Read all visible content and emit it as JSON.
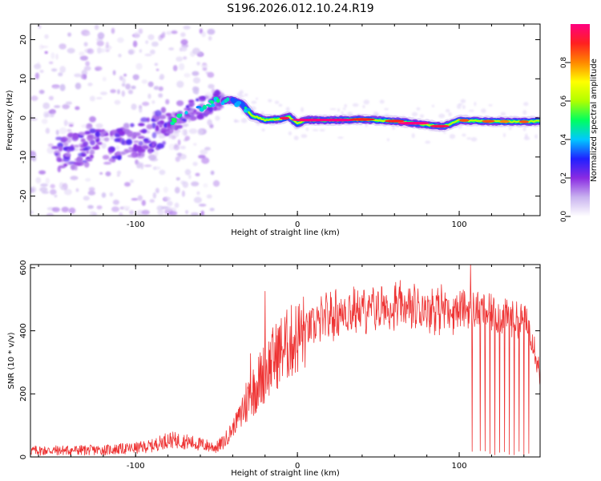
{
  "title": "S196.2026.012.10.24.R19",
  "chart_data": [
    {
      "type": "heatmap",
      "name": "spectrogram",
      "xlabel": "Height of straight line (km)",
      "ylabel": "Frequency (Hz)",
      "xlim": [
        -165,
        150
      ],
      "ylim": [
        -25,
        24
      ],
      "xticks": [
        -100,
        0,
        100
      ],
      "xtick_labels": [
        "-100",
        "0",
        "100"
      ],
      "yticks": [
        -20,
        -10,
        0,
        10,
        20
      ],
      "ytick_labels": [
        "-20",
        "-10",
        "0",
        "10",
        "20"
      ],
      "grid": false,
      "ridge_line": {
        "x": [
          -165,
          -130,
          -100,
          -85,
          -70,
          -58,
          -48,
          -40,
          -34,
          -28,
          -20,
          -10,
          -5,
          0,
          5,
          20,
          40,
          60,
          75,
          85,
          90,
          95,
          100,
          120,
          140,
          150
        ],
        "y": [
          -10,
          -8,
          -6,
          -3,
          1,
          3,
          4.5,
          4.5,
          3.5,
          0.5,
          -0.5,
          -0.3,
          0.3,
          -1.5,
          -0.5,
          -0.6,
          -0.4,
          -0.8,
          -1.5,
          -2,
          -2.2,
          -1.5,
          -0.6,
          -0.9,
          -1,
          -0.8
        ]
      },
      "colorbar": {
        "label": "Normalized spectral amplitude",
        "range": [
          0.0,
          1.0
        ],
        "ticks": [
          0.0,
          0.2,
          0.4,
          0.6,
          0.8
        ],
        "tick_labels": [
          "0.0",
          "0.2",
          "0.4",
          "0.6",
          "0.8"
        ],
        "colors": [
          "#ffffff",
          "#c9b3ef",
          "#8a2be2",
          "#2020ff",
          "#00c8ff",
          "#00ff60",
          "#b0ff00",
          "#ffff00",
          "#ff8800",
          "#ff2020",
          "#ff0080"
        ]
      }
    },
    {
      "type": "line",
      "name": "snr",
      "xlabel": "Height of straight line (km)",
      "ylabel": "SNR (10 * v/v)",
      "xlim": [
        -165,
        150
      ],
      "ylim": [
        0,
        610
      ],
      "xticks": [
        -100,
        0,
        100
      ],
      "xtick_labels": [
        "-100",
        "0",
        "100"
      ],
      "yticks": [
        0,
        200,
        400,
        600
      ],
      "ytick_labels": [
        "0",
        "200",
        "400",
        "600"
      ],
      "grid": false,
      "line_color": "#ee3333",
      "series_envelope": {
        "x": [
          -165,
          -120,
          -100,
          -90,
          -80,
          -70,
          -60,
          -50,
          -45,
          -40,
          -35,
          -30,
          -25,
          -20,
          -15,
          -10,
          -5,
          0,
          10,
          20,
          30,
          40,
          50,
          60,
          70,
          80,
          90,
          100,
          110,
          120,
          130,
          140,
          145,
          150
        ],
        "y": [
          20,
          22,
          28,
          35,
          55,
          50,
          40,
          30,
          50,
          90,
          140,
          190,
          230,
          270,
          310,
          340,
          360,
          380,
          420,
          445,
          460,
          465,
          470,
          475,
          470,
          470,
          472,
          470,
          468,
          455,
          440,
          430,
          390,
          260
        ]
      },
      "spikes": [
        {
          "x": -20,
          "y": 525
        },
        {
          "x": -29,
          "y": 328
        },
        {
          "x": 107,
          "y": 612
        }
      ],
      "dropouts_x": [
        108,
        113,
        116,
        119,
        122,
        125,
        128,
        131,
        134,
        137,
        140,
        143
      ]
    }
  ]
}
